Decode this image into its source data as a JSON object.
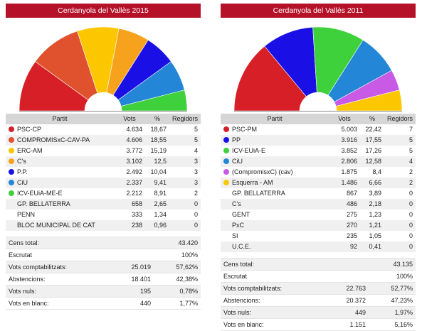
{
  "headers": {
    "partit": "Partit",
    "vots": "Vots",
    "pct": "%",
    "regidors": "Regidors"
  },
  "chart_data": [
    {
      "type": "table",
      "title": "Cerdanyola del Vallès 2015",
      "rows": [
        {
          "name": "PSC-CP",
          "vots": "4.634",
          "pct": "18,67",
          "regidors": 5,
          "color": "#d71f27"
        },
        {
          "name": "COMPROMISxC-CAV-PA",
          "vots": "4.606",
          "pct": "18,55",
          "regidors": 5,
          "color": "#e0522e"
        },
        {
          "name": "ERC-AM",
          "vots": "3.772",
          "pct": "15,19",
          "regidors": 4,
          "color": "#fdc700"
        },
        {
          "name": "C's",
          "vots": "3.102",
          "pct": "12,5",
          "regidors": 3,
          "color": "#f7a21c"
        },
        {
          "name": "P.P.",
          "vots": "2.492",
          "pct": "10,04",
          "regidors": 3,
          "color": "#1a10e6"
        },
        {
          "name": "CiU",
          "vots": "2.337",
          "pct": "9,41",
          "regidors": 3,
          "color": "#2386d6"
        },
        {
          "name": "ICV-EUiA-ME-E",
          "vots": "2.212",
          "pct": "8,91",
          "regidors": 2,
          "color": "#3fd13c"
        },
        {
          "name": "GP. BELLATERRA",
          "vots": "658",
          "pct": "2,65",
          "regidors": 0,
          "color": ""
        },
        {
          "name": "PENN",
          "vots": "333",
          "pct": "1,34",
          "regidors": 0,
          "color": ""
        },
        {
          "name": "BLOC MUNICIPAL DE CAT",
          "vots": "238",
          "pct": "0,96",
          "regidors": 0,
          "color": ""
        }
      ],
      "summary": [
        {
          "label": "Cens total:",
          "value": "",
          "pct": "43.420"
        },
        {
          "label": "Escrutat",
          "value": "",
          "pct": "100%"
        },
        {
          "label": "Vots comptabilitzats:",
          "value": "25.019",
          "pct": "57,62%"
        },
        {
          "label": "Abstencions:",
          "value": "18.401",
          "pct": "42,38%"
        },
        {
          "label": "Vots nuls:",
          "value": "195",
          "pct": "0,78%"
        },
        {
          "label": "Vots en blanc:",
          "value": "440",
          "pct": "1,77%"
        }
      ]
    },
    {
      "type": "table",
      "title": "Cerdanyola del Vallès 2011",
      "rows": [
        {
          "name": "PSC-PM",
          "vots": "5.003",
          "pct": "22,42",
          "regidors": 7,
          "color": "#d71f27"
        },
        {
          "name": "PP",
          "vots": "3.916",
          "pct": "17,55",
          "regidors": 5,
          "color": "#1a10e6"
        },
        {
          "name": "ICV-EUiA-E",
          "vots": "3.852",
          "pct": "17,26",
          "regidors": 5,
          "color": "#3fd13c"
        },
        {
          "name": "CiU",
          "vots": "2.806",
          "pct": "12,58",
          "regidors": 4,
          "color": "#2386d6"
        },
        {
          "name": "(CompromisxC) (cav)",
          "vots": "1.875",
          "pct": "8,4",
          "regidors": 2,
          "color": "#c85ae6"
        },
        {
          "name": "Esquerra - AM",
          "vots": "1.486",
          "pct": "6,66",
          "regidors": 2,
          "color": "#fdc700"
        },
        {
          "name": "GP. BELLATERRA",
          "vots": "867",
          "pct": "3,89",
          "regidors": 0,
          "color": ""
        },
        {
          "name": "C's",
          "vots": "486",
          "pct": "2,18",
          "regidors": 0,
          "color": ""
        },
        {
          "name": "GENT",
          "vots": "275",
          "pct": "1,23",
          "regidors": 0,
          "color": ""
        },
        {
          "name": "PxC",
          "vots": "270",
          "pct": "1,21",
          "regidors": 0,
          "color": ""
        },
        {
          "name": "SI",
          "vots": "235",
          "pct": "1,05",
          "regidors": 0,
          "color": ""
        },
        {
          "name": "U.C.E.",
          "vots": "92",
          "pct": "0,41",
          "regidors": 0,
          "color": ""
        }
      ],
      "summary": [
        {
          "label": "Cens total:",
          "value": "",
          "pct": "43.135"
        },
        {
          "label": "Escrutat",
          "value": "",
          "pct": "100%"
        },
        {
          "label": "Vots comptabilitzats:",
          "value": "22.763",
          "pct": "52,77%"
        },
        {
          "label": "Abstencions:",
          "value": "20.372",
          "pct": "47,23%"
        },
        {
          "label": "Vots nuls:",
          "value": "449",
          "pct": "1,97%"
        },
        {
          "label": "Vots en blanc:",
          "value": "1.151",
          "pct": "5,16%"
        }
      ]
    }
  ]
}
